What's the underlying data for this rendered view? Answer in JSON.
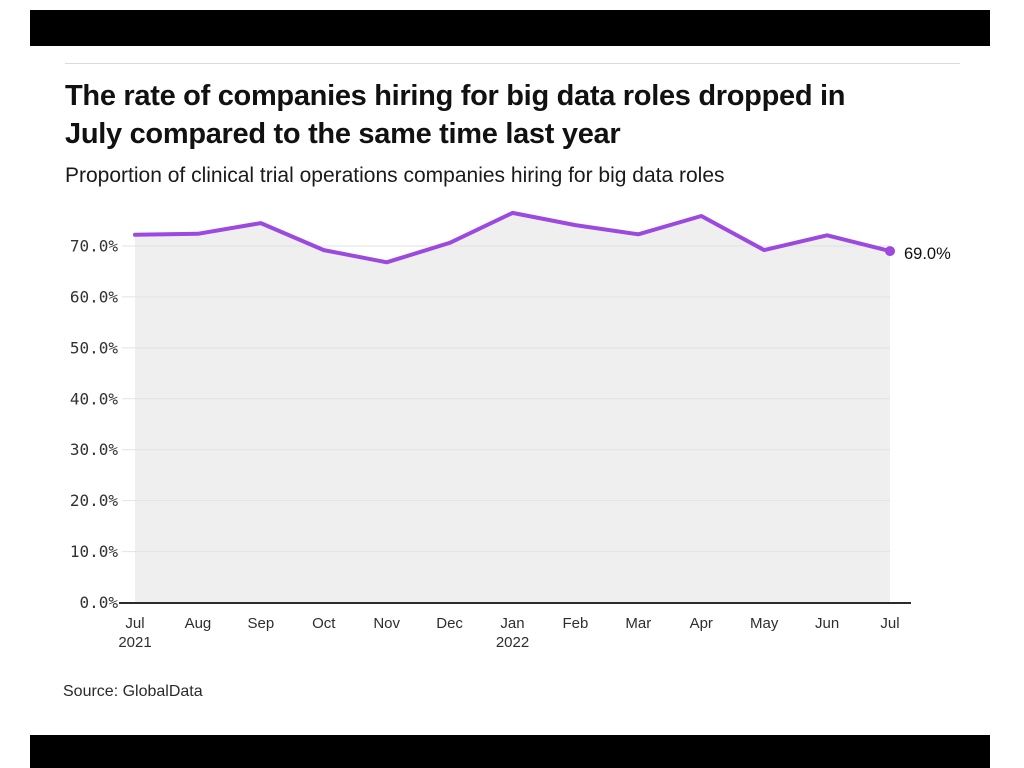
{
  "header": {
    "title_lines": [
      "The rate of companies hiring for big data roles dropped in",
      "July compared to the same time last year"
    ],
    "subtitle": "Proportion of clinical trial operations companies hiring for big data roles"
  },
  "footer": {
    "source": "Source: GlobalData"
  },
  "colors": {
    "accent_purple": "#9c49df",
    "frame_bar_black": "#000000",
    "area_fill": "#efefef",
    "gridline": "#e2e2e2",
    "axis_line": "#2b2b2b",
    "divider": "#dcdcdc"
  },
  "chart_data": {
    "type": "line",
    "title": "The rate of companies hiring for big data roles dropped in July compared to the same time last year",
    "subtitle": "Proportion of clinical trial operations companies hiring for big data roles",
    "categories": [
      "Jul",
      "Aug",
      "Sep",
      "Oct",
      "Nov",
      "Dec",
      "Jan",
      "Feb",
      "Mar",
      "Apr",
      "May",
      "Jun",
      "Jul"
    ],
    "category_years": {
      "0": "2021",
      "6": "2022"
    },
    "series": [
      {
        "name": "Proportion of clinical trial operations companies hiring for big data roles",
        "values": [
          72.2,
          72.4,
          74.5,
          69.2,
          66.8,
          70.6,
          76.5,
          74.1,
          72.3,
          75.9,
          69.2,
          72.1,
          69.0
        ]
      }
    ],
    "end_label": "69.0%",
    "ytick_labels": [
      "0.0%",
      "10.0%",
      "20.0%",
      "30.0%",
      "40.0%",
      "50.0%",
      "60.0%",
      "70.0%"
    ],
    "yticks": [
      0,
      10,
      20,
      30,
      40,
      50,
      60,
      70
    ],
    "ylim": [
      0,
      78
    ],
    "grid": "horizontal",
    "legend": "none",
    "area_fill": true
  }
}
